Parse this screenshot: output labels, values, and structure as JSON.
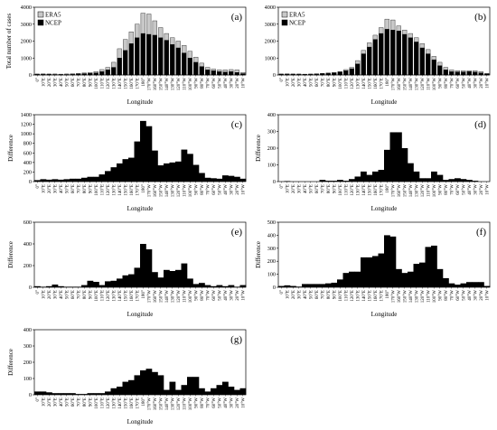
{
  "legend": {
    "era5": "ERA5",
    "ncep": "NCEP"
  },
  "chart_data": [
    {
      "type": "bar",
      "panel_label": "(a)",
      "ylabel": "Total number of cases",
      "xlabel": "Longitude",
      "ylim": [
        0,
        4000
      ],
      "yticks": [
        0,
        1000,
        2000,
        3000,
        4000
      ],
      "categories": [
        "0°",
        "10°E",
        "20°E",
        "30°E",
        "40°E",
        "50°E",
        "60°E",
        "70°E",
        "80°E",
        "90°E",
        "100°E",
        "110°E",
        "120°E",
        "130°E",
        "140°E",
        "150°E",
        "160°E",
        "170°E",
        "180°",
        "170°W",
        "160°W",
        "150°W",
        "140°W",
        "130°W",
        "120°W",
        "110°W",
        "100°W",
        "90°W",
        "80°W",
        "70°W",
        "60°W",
        "50°W",
        "40°W",
        "30°W",
        "20°W",
        "10°W"
      ],
      "series": [
        {
          "name": "ERA5",
          "color": "#c8c8c8",
          "values": [
            60,
            70,
            60,
            60,
            50,
            60,
            80,
            100,
            120,
            150,
            200,
            320,
            450,
            750,
            1550,
            2100,
            2550,
            3000,
            3650,
            3600,
            3200,
            2800,
            2450,
            2200,
            2000,
            1750,
            1400,
            1050,
            700,
            450,
            350,
            300,
            300,
            320,
            300,
            150
          ]
        },
        {
          "name": "NCEP",
          "color": "#000000",
          "values": [
            40,
            40,
            40,
            30,
            30,
            30,
            40,
            60,
            80,
            100,
            120,
            200,
            300,
            450,
            1000,
            1450,
            1850,
            2200,
            2450,
            2400,
            2350,
            2200,
            2050,
            1800,
            1600,
            1300,
            1000,
            750,
            500,
            300,
            250,
            200,
            170,
            200,
            150,
            80
          ]
        }
      ]
    },
    {
      "type": "bar",
      "panel_label": "(b)",
      "ylabel": "",
      "xlabel": "Longitude",
      "ylim": [
        0,
        4000
      ],
      "yticks": [
        0,
        1000,
        2000,
        3000,
        4000
      ],
      "categories": [
        "0°",
        "10°E",
        "20°E",
        "30°E",
        "40°E",
        "50°E",
        "60°E",
        "70°E",
        "80°E",
        "90°E",
        "100°E",
        "110°E",
        "120°E",
        "130°E",
        "140°E",
        "150°E",
        "160°E",
        "170°E",
        "180°",
        "170°W",
        "160°W",
        "150°W",
        "140°W",
        "130°W",
        "120°W",
        "110°W",
        "100°W",
        "90°W",
        "80°W",
        "70°W",
        "60°W",
        "50°W",
        "40°W",
        "30°W",
        "20°W",
        "10°W"
      ],
      "series": [
        {
          "name": "ERA5",
          "color": "#c8c8c8",
          "values": [
            60,
            70,
            60,
            60,
            50,
            60,
            80,
            100,
            120,
            150,
            200,
            320,
            450,
            850,
            1450,
            1900,
            2350,
            2800,
            3300,
            3250,
            2900,
            2650,
            2450,
            2200,
            1850,
            1500,
            1100,
            750,
            450,
            300,
            250,
            250,
            260,
            250,
            200,
            100
          ]
        },
        {
          "name": "NCEP",
          "color": "#000000",
          "values": [
            50,
            50,
            50,
            40,
            40,
            40,
            50,
            80,
            100,
            120,
            170,
            250,
            370,
            650,
            1250,
            1650,
            2100,
            2450,
            2700,
            2650,
            2600,
            2400,
            2200,
            1950,
            1600,
            1250,
            900,
            550,
            300,
            200,
            180,
            180,
            200,
            170,
            120,
            60
          ]
        }
      ]
    },
    {
      "type": "bar",
      "panel_label": "(c)",
      "ylabel": "Difference",
      "xlabel": "Longitude",
      "ylim": [
        0,
        1400
      ],
      "yticks": [
        0,
        200,
        400,
        600,
        800,
        1000,
        1200,
        1400
      ],
      "categories": [
        "0°",
        "10°E",
        "20°E",
        "30°E",
        "40°E",
        "50°E",
        "60°E",
        "70°E",
        "80°E",
        "90°E",
        "100°E",
        "110°E",
        "120°E",
        "130°E",
        "140°E",
        "150°E",
        "160°E",
        "170°E",
        "180°",
        "170°W",
        "160°W",
        "150°W",
        "140°W",
        "130°W",
        "120°W",
        "110°W",
        "100°W",
        "90°W",
        "80°W",
        "70°W",
        "60°W",
        "50°W",
        "40°W",
        "30°W",
        "20°W",
        "10°W"
      ],
      "values": [
        30,
        50,
        40,
        50,
        40,
        50,
        60,
        60,
        80,
        100,
        100,
        150,
        220,
        300,
        380,
        470,
        500,
        840,
        1270,
        1160,
        650,
        340,
        380,
        400,
        420,
        670,
        580,
        350,
        180,
        80,
        70,
        60,
        130,
        120,
        100,
        60
      ]
    },
    {
      "type": "bar",
      "panel_label": "(d)",
      "ylabel": "Difference",
      "xlabel": "Longitude",
      "ylim": [
        0,
        400
      ],
      "yticks": [
        0,
        100,
        200,
        300,
        400
      ],
      "categories": [
        "0°",
        "10°E",
        "20°E",
        "30°E",
        "40°E",
        "50°E",
        "60°E",
        "70°E",
        "80°E",
        "90°E",
        "100°E",
        "110°E",
        "120°E",
        "130°E",
        "140°E",
        "150°E",
        "160°E",
        "170°E",
        "180°",
        "170°W",
        "160°W",
        "150°W",
        "140°W",
        "130°W",
        "120°W",
        "110°W",
        "100°W",
        "90°W",
        "80°W",
        "70°W",
        "60°W",
        "50°W",
        "40°W",
        "30°W",
        "20°W",
        "10°W"
      ],
      "values": [
        0,
        3,
        0,
        0,
        0,
        0,
        0,
        10,
        5,
        5,
        10,
        5,
        15,
        30,
        60,
        40,
        60,
        70,
        190,
        295,
        295,
        200,
        110,
        60,
        20,
        20,
        60,
        40,
        10,
        15,
        20,
        15,
        10,
        5,
        0,
        0
      ]
    },
    {
      "type": "bar",
      "panel_label": "(e)",
      "ylabel": "Difference",
      "xlabel": "Longitude",
      "ylim": [
        0,
        600
      ],
      "yticks": [
        0,
        200,
        400,
        600
      ],
      "categories": [
        "0°",
        "10°E",
        "20°E",
        "30°E",
        "40°E",
        "50°E",
        "60°E",
        "70°E",
        "80°E",
        "90°E",
        "100°E",
        "110°E",
        "120°E",
        "130°E",
        "140°E",
        "150°E",
        "160°E",
        "170°E",
        "180°",
        "170°W",
        "160°W",
        "150°W",
        "140°W",
        "130°W",
        "120°W",
        "110°W",
        "100°W",
        "90°W",
        "80°W",
        "70°W",
        "60°W",
        "50°W",
        "40°W",
        "30°W",
        "20°W",
        "10°W"
      ],
      "values": [
        10,
        5,
        10,
        25,
        10,
        5,
        5,
        5,
        20,
        60,
        50,
        20,
        55,
        60,
        80,
        110,
        120,
        180,
        400,
        350,
        140,
        90,
        160,
        150,
        160,
        220,
        80,
        30,
        40,
        20,
        10,
        20,
        10,
        20,
        5,
        20
      ]
    },
    {
      "type": "bar",
      "panel_label": "(f)",
      "ylabel": "Difference",
      "xlabel": "Longitude",
      "ylim": [
        0,
        500
      ],
      "yticks": [
        0,
        100,
        200,
        300,
        400,
        500
      ],
      "categories": [
        "0°",
        "10°E",
        "20°E",
        "30°E",
        "40°E",
        "50°E",
        "60°E",
        "70°E",
        "80°E",
        "90°E",
        "100°E",
        "110°E",
        "120°E",
        "130°E",
        "140°E",
        "150°E",
        "160°E",
        "170°E",
        "180°",
        "170°W",
        "160°W",
        "150°W",
        "140°W",
        "130°W",
        "120°W",
        "110°W",
        "100°W",
        "90°W",
        "80°W",
        "70°W",
        "60°W",
        "50°W",
        "40°W",
        "30°W",
        "20°W",
        "10°W"
      ],
      "values": [
        10,
        15,
        10,
        5,
        25,
        25,
        25,
        25,
        30,
        35,
        60,
        110,
        120,
        120,
        230,
        230,
        240,
        260,
        400,
        390,
        140,
        110,
        120,
        180,
        190,
        310,
        320,
        140,
        70,
        30,
        20,
        30,
        40,
        40,
        40,
        10
      ]
    },
    {
      "type": "bar",
      "panel_label": "(g)",
      "ylabel": "Difference",
      "xlabel": "Longitude",
      "ylim": [
        0,
        400
      ],
      "yticks": [
        0,
        100,
        200,
        300,
        400
      ],
      "categories": [
        "0°",
        "10°E",
        "20°E",
        "30°E",
        "40°E",
        "50°E",
        "60°E",
        "70°E",
        "80°E",
        "90°E",
        "100°E",
        "110°E",
        "120°E",
        "130°E",
        "140°E",
        "150°E",
        "160°E",
        "170°E",
        "180°",
        "170°W",
        "160°W",
        "150°W",
        "140°W",
        "130°W",
        "120°W",
        "110°W",
        "100°W",
        "90°W",
        "80°W",
        "70°W",
        "60°W",
        "50°W",
        "40°W",
        "30°W",
        "20°W",
        "10°W"
      ],
      "values": [
        20,
        20,
        15,
        10,
        10,
        10,
        10,
        5,
        5,
        10,
        10,
        10,
        20,
        40,
        50,
        80,
        90,
        120,
        150,
        160,
        140,
        120,
        30,
        80,
        30,
        60,
        110,
        110,
        40,
        20,
        40,
        60,
        80,
        50,
        30,
        40
      ]
    }
  ]
}
